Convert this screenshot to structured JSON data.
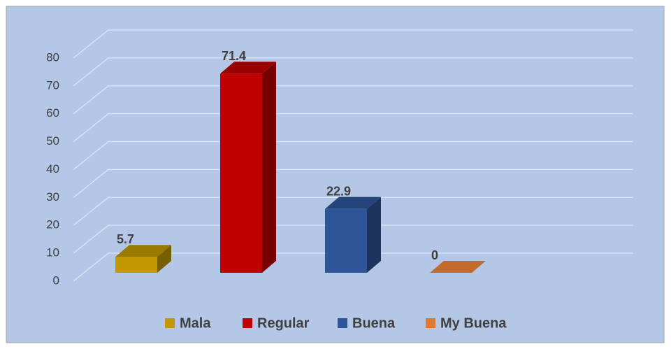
{
  "chart_data": {
    "type": "bar3d",
    "categories": [
      "Mala",
      "Regular",
      "Buena",
      "My Buena"
    ],
    "values": [
      5.7,
      71.4,
      22.9,
      0
    ],
    "colors": [
      "#c09a00",
      "#c00000",
      "#2e5597",
      "#e07a30"
    ],
    "ylim": [
      0,
      80
    ],
    "yticks": [
      0,
      10,
      20,
      30,
      40,
      50,
      60,
      70,
      80
    ],
    "grid": true,
    "legend": "bottom"
  }
}
